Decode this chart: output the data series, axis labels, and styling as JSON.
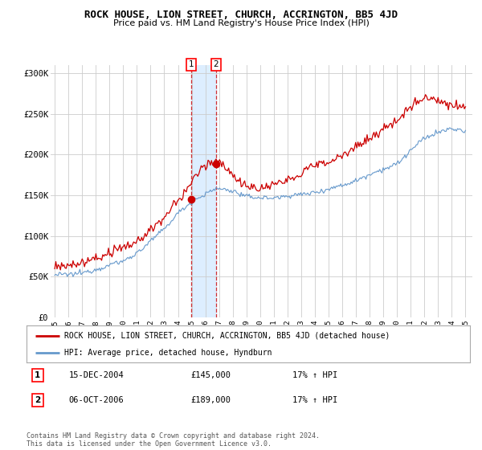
{
  "title": "ROCK HOUSE, LION STREET, CHURCH, ACCRINGTON, BB5 4JD",
  "subtitle": "Price paid vs. HM Land Registry's House Price Index (HPI)",
  "ylabel_ticks": [
    "£0",
    "£50K",
    "£100K",
    "£150K",
    "£200K",
    "£250K",
    "£300K"
  ],
  "ylim": [
    0,
    310000
  ],
  "yticks": [
    0,
    50000,
    100000,
    150000,
    200000,
    250000,
    300000
  ],
  "sale1_date": "15-DEC-2004",
  "sale1_price": 145000,
  "sale1_hpi": "17% ↑ HPI",
  "sale1_x": 2004.96,
  "sale2_date": "06-OCT-2006",
  "sale2_price": 189000,
  "sale2_hpi": "17% ↑ HPI",
  "sale2_x": 2006.77,
  "legend_property": "ROCK HOUSE, LION STREET, CHURCH, ACCRINGTON, BB5 4JD (detached house)",
  "legend_hpi": "HPI: Average price, detached house, Hyndburn",
  "line_color_property": "#cc0000",
  "line_color_hpi": "#6699cc",
  "shade_color": "#ddeeff",
  "footer": "Contains HM Land Registry data © Crown copyright and database right 2024.\nThis data is licensed under the Open Government Licence v3.0.",
  "background_color": "#ffffff",
  "grid_color": "#cccccc",
  "xlim_left": 1994.7,
  "xlim_right": 2025.5
}
